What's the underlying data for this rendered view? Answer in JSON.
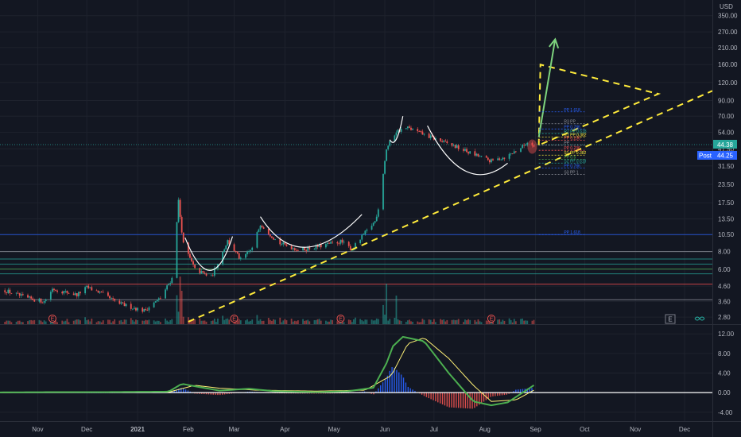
{
  "header": {
    "currency": "USD"
  },
  "price_axis": {
    "ticks": [
      "350.00",
      "270.00",
      "210.00",
      "160.00",
      "120.00",
      "90.00",
      "70.00",
      "54.00",
      "41.50",
      "31.50",
      "23.50",
      "17.50",
      "13.50",
      "10.50",
      "8.00",
      "6.00",
      "4.60",
      "3.60",
      "2.80"
    ],
    "last_price_label": "44.38",
    "post_badge": "Post",
    "post_price_label": "44.25"
  },
  "time_axis": {
    "labels": [
      "Nov",
      "Dec",
      "2021",
      "Feb",
      "Mar",
      "Apr",
      "May",
      "Jun",
      "Jul",
      "Aug",
      "Sep",
      "Oct",
      "Nov",
      "Dec"
    ]
  },
  "indicator_axis": {
    "ticks": [
      "12.00",
      "8.00",
      "4.00",
      "0.00",
      "-4.00"
    ]
  },
  "markers": {
    "earnings": "E",
    "dividend": "E",
    "e_button": "E"
  },
  "pivots": [
    {
      "label": "PP 1.618",
      "color": "#2962ff"
    },
    {
      "label": "R3 PP",
      "color": "#9598a1"
    },
    {
      "label": "PP 0.786",
      "color": "#2962ff"
    },
    {
      "label": "R2 PP 0.618",
      "color": "#26a69a"
    },
    {
      "label": "R1 PP 0.382",
      "color": "#ffeb3b"
    },
    {
      "label": "PP 0.236",
      "color": "#ff5252"
    },
    {
      "label": "PP",
      "color": "#9598a1"
    },
    {
      "label": "PP 0.236",
      "color": "#ff5252"
    },
    {
      "label": "S1 PP 0.382",
      "color": "#ffeb3b"
    },
    {
      "label": "PP 0.5",
      "color": "#4caf50"
    },
    {
      "label": "S2 PP 0.618",
      "color": "#26a69a"
    },
    {
      "label": "PP 0.786",
      "color": "#2962ff"
    },
    {
      "label": "S3 PP 1",
      "color": "#9598a1"
    },
    {
      "label": "PP 1.618",
      "color": "#2962ff"
    }
  ],
  "chart_data": [
    {
      "type": "candlestick",
      "scale": "log",
      "ylim": [
        2.5,
        450
      ],
      "x_range": [
        "2020-10-09",
        "2021-12-18"
      ],
      "last_price": 44.38,
      "post_price": 44.25,
      "close_anchors": [
        [
          "2020-10-12",
          4.3
        ],
        [
          "2020-10-25",
          3.8
        ],
        [
          "2020-11-05",
          3.6
        ],
        [
          "2020-11-10",
          4.4
        ],
        [
          "2020-11-25",
          4.0
        ],
        [
          "2020-12-01",
          4.5
        ],
        [
          "2020-12-08",
          4.2
        ],
        [
          "2020-12-20",
          3.5
        ],
        [
          "2021-01-05",
          3.1
        ],
        [
          "2021-01-15",
          3.8
        ],
        [
          "2021-01-22",
          5.2
        ],
        [
          "2021-01-26",
          18.0
        ],
        [
          "2021-01-27",
          14.0
        ],
        [
          "2021-01-29",
          9.0
        ],
        [
          "2021-02-05",
          6.0
        ],
        [
          "2021-02-15",
          5.3
        ],
        [
          "2021-02-25",
          9.5
        ],
        [
          "2021-03-05",
          7.0
        ],
        [
          "2021-03-12",
          8.4
        ],
        [
          "2021-03-17",
          12.5
        ],
        [
          "2021-03-28",
          9.2
        ],
        [
          "2021-04-10",
          8.2
        ],
        [
          "2021-04-20",
          8.6
        ],
        [
          "2021-05-05",
          9.4
        ],
        [
          "2021-05-12",
          8.3
        ],
        [
          "2021-05-20",
          10.8
        ],
        [
          "2021-05-26",
          13.0
        ],
        [
          "2021-05-28",
          16.0
        ],
        [
          "2021-06-02",
          41.5
        ],
        [
          "2021-06-08",
          55.0
        ],
        [
          "2021-06-15",
          58.0
        ],
        [
          "2021-06-25",
          52.0
        ],
        [
          "2021-07-05",
          47.0
        ],
        [
          "2021-07-14",
          43.0
        ],
        [
          "2021-07-25",
          38.0
        ],
        [
          "2021-08-05",
          34.0
        ],
        [
          "2021-08-15",
          37.0
        ],
        [
          "2021-08-24",
          43.0
        ],
        [
          "2021-08-27",
          46.0
        ],
        [
          "2021-08-31",
          44.38
        ]
      ],
      "volume_peaks": [
        [
          "2021-01-27",
          1.0
        ],
        [
          "2021-06-02",
          0.85
        ],
        [
          "2021-01-28",
          0.7
        ],
        [
          "2021-06-08",
          0.6
        ]
      ],
      "annotations": [
        {
          "type": "trendline",
          "style": "dashed",
          "color": "#ffeb3b",
          "from": [
            "2021-02-01",
            2.6
          ],
          "to": [
            "2021-12-18",
            105
          ]
        },
        {
          "type": "triangle",
          "style": "dashed",
          "color": "#ffeb3b",
          "points": [
            [
              "2021-09-03",
              44
            ],
            [
              "2021-09-04",
              160
            ],
            [
              "2021-11-15",
              100
            ]
          ]
        },
        {
          "type": "arrow",
          "color": "#7ed47e",
          "from": [
            "2021-09-03",
            50
          ],
          "to": [
            "2021-09-13",
            240
          ]
        },
        {
          "type": "cup",
          "color": "#ffffff",
          "segment": [
            [
              "2021-01-30",
              10
            ],
            [
              "2021-02-15",
              5.2
            ],
            [
              "2021-02-28",
              10.2
            ]
          ]
        },
        {
          "type": "cup",
          "color": "#ffffff",
          "segment": [
            [
              "2021-03-17",
              14.0
            ],
            [
              "2021-04-10",
              7.6
            ],
            [
              "2021-05-18",
              14.5
            ]
          ]
        },
        {
          "type": "cup",
          "color": "#ffffff",
          "segment": [
            [
              "2021-06-04",
              48
            ],
            [
              "2021-06-12",
              70
            ]
          ]
        },
        {
          "type": "cup",
          "color": "#ffffff",
          "segment": [
            [
              "2021-06-27",
              60
            ],
            [
              "2021-07-20",
              29.0
            ],
            [
              "2021-08-15",
              33
            ]
          ]
        }
      ],
      "horizontal_levels": [
        {
          "value": 10.5,
          "color": "#2962ff"
        },
        {
          "value": 8.0,
          "color": "#9598a1"
        },
        {
          "value": 7.1,
          "color": "#26a69a"
        },
        {
          "value": 6.55,
          "color": "#26a69a"
        },
        {
          "value": 6.05,
          "color": "#4caf50"
        },
        {
          "value": 5.6,
          "color": "#26a69a"
        },
        {
          "value": 4.75,
          "color": "#ff5252"
        },
        {
          "value": 3.7,
          "color": "#9598a1"
        }
      ]
    },
    {
      "type": "macd",
      "ylim": [
        -5.5,
        13.5
      ],
      "macd_line": [
        [
          "2020-10-09",
          0.05
        ],
        [
          "2020-11-10",
          0.1
        ],
        [
          "2020-12-10",
          0.1
        ],
        [
          "2021-01-20",
          0.2
        ],
        [
          "2021-01-28",
          1.8
        ],
        [
          "2021-02-05",
          1.3
        ],
        [
          "2021-02-20",
          0.4
        ],
        [
          "2021-03-10",
          0.8
        ],
        [
          "2021-03-25",
          0.3
        ],
        [
          "2021-04-20",
          0.1
        ],
        [
          "2021-05-10",
          0.3
        ],
        [
          "2021-05-25",
          1.0
        ],
        [
          "2021-06-02",
          6.0
        ],
        [
          "2021-06-06",
          9.5
        ],
        [
          "2021-06-12",
          11.4
        ],
        [
          "2021-06-25",
          10.5
        ],
        [
          "2021-07-10",
          4.0
        ],
        [
          "2021-07-25",
          -1.8
        ],
        [
          "2021-08-05",
          -2.6
        ],
        [
          "2021-08-15",
          -2.0
        ],
        [
          "2021-08-31",
          1.5
        ]
      ],
      "signal_line": [
        [
          "2020-10-09",
          0.0
        ],
        [
          "2020-11-10",
          0.05
        ],
        [
          "2020-12-10",
          0.1
        ],
        [
          "2021-01-20",
          0.1
        ],
        [
          "2021-02-05",
          1.5
        ],
        [
          "2021-02-20",
          0.9
        ],
        [
          "2021-03-15",
          0.5
        ],
        [
          "2021-04-20",
          0.3
        ],
        [
          "2021-05-20",
          0.5
        ],
        [
          "2021-06-05",
          3.5
        ],
        [
          "2021-06-15",
          10.0
        ],
        [
          "2021-06-25",
          11.2
        ],
        [
          "2021-07-10",
          7.0
        ],
        [
          "2021-07-25",
          1.5
        ],
        [
          "2021-08-05",
          -1.8
        ],
        [
          "2021-08-20",
          -1.5
        ],
        [
          "2021-08-31",
          0.5
        ]
      ],
      "zero_line": 0.0
    }
  ]
}
